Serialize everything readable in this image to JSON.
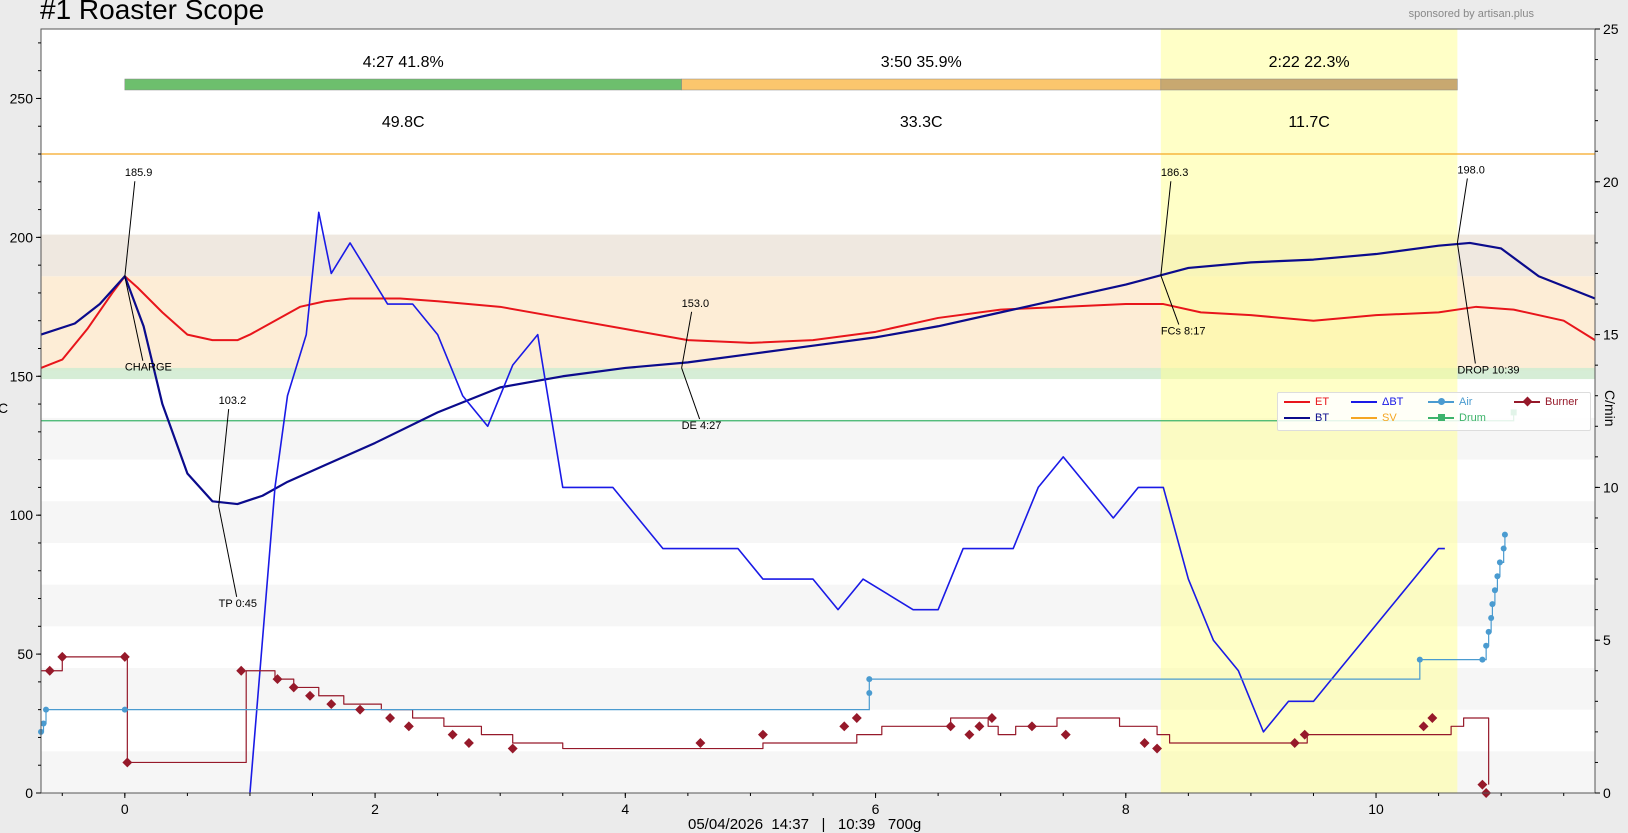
{
  "app": {
    "title": "#1 Roaster Scope",
    "sponsor": "sponsored by artisan.plus",
    "footer": "05/04/2026  14:37   |   10:39   700g",
    "ylabel_left": "C",
    "ylabel_right": "C/min"
  },
  "phases": [
    {
      "time": "4:27  41.8%",
      "delta": "49.8C",
      "color": "#6dbf6d"
    },
    {
      "time": "3:50  35.9%",
      "delta": "33.3C",
      "color": "#fbc66d"
    },
    {
      "time": "2:22  22.3%",
      "delta": "11.7C",
      "color": "#c8a870"
    }
  ],
  "events": [
    {
      "value": "185.9",
      "label": "CHARGE"
    },
    {
      "value": "103.2",
      "label": "TP 0:45"
    },
    {
      "value": "153.0",
      "label": "DE 4:27"
    },
    {
      "value": "186.3",
      "label": "FCs 8:17"
    },
    {
      "value": "198.0",
      "label": "DROP 10:39"
    }
  ],
  "legend": [
    {
      "name": "ET",
      "color": "#e8151b",
      "marker": "line"
    },
    {
      "name": "ΔBT",
      "color": "#1a1ae6",
      "marker": "line"
    },
    {
      "name": "Air",
      "color": "#4a9bd0",
      "marker": "circle"
    },
    {
      "name": "Burner",
      "color": "#96192a",
      "marker": "diamond"
    },
    {
      "name": "BT",
      "color": "#0b0b8c",
      "marker": "line"
    },
    {
      "name": "SV",
      "color": "#f5a623",
      "marker": "line"
    },
    {
      "name": "Drum",
      "color": "#3db36b",
      "marker": "square"
    }
  ],
  "chart_data": {
    "type": "line",
    "x_unit": "minutes",
    "xlim": [
      -0.67,
      11.75
    ],
    "ylim": [
      0,
      275
    ],
    "y2lim": [
      0,
      25
    ],
    "xticks": [
      0,
      2,
      4,
      6,
      8,
      10
    ],
    "yticks": [
      0,
      50,
      100,
      150,
      200,
      250
    ],
    "y2ticks": [
      0,
      5,
      10,
      15,
      20,
      25
    ],
    "bands": [
      {
        "from": 152,
        "to": 186,
        "color": "#fdebd2"
      },
      {
        "from": 186,
        "to": 201,
        "color": "#ede5dd"
      },
      {
        "from": 149,
        "to": 153,
        "color": "#d2ebd2"
      }
    ],
    "finish_phase": {
      "from": 8.28,
      "to": 10.65
    },
    "sv_level": 230,
    "drum_level": 134,
    "series": [
      {
        "name": "ET",
        "color": "#e8151b",
        "axis": "left",
        "x": [
          -0.67,
          -0.5,
          -0.3,
          -0.1,
          0,
          0.1,
          0.3,
          0.5,
          0.7,
          0.9,
          1.0,
          1.2,
          1.4,
          1.6,
          1.8,
          2.0,
          2.2,
          2.5,
          3.0,
          3.5,
          4.0,
          4.5,
          5.0,
          5.5,
          6.0,
          6.5,
          7.0,
          7.5,
          8.0,
          8.3,
          8.6,
          9.0,
          9.5,
          10.0,
          10.5,
          10.8,
          11.1,
          11.5,
          11.75
        ],
        "y": [
          153,
          156,
          167,
          180,
          186,
          182,
          173,
          165,
          163,
          163,
          165,
          170,
          175,
          177,
          178,
          178,
          178,
          177,
          175,
          171,
          167,
          163,
          162,
          163,
          166,
          171,
          174,
          175,
          176,
          176,
          173,
          172,
          170,
          172,
          173,
          175,
          174,
          170,
          163
        ]
      },
      {
        "name": "BT",
        "color": "#0b0b8c",
        "axis": "left",
        "x": [
          -0.67,
          -0.4,
          -0.2,
          0,
          0.15,
          0.3,
          0.5,
          0.7,
          0.9,
          1.1,
          1.3,
          1.6,
          2.0,
          2.5,
          3.0,
          3.5,
          4.0,
          4.5,
          5.0,
          5.5,
          6.0,
          6.5,
          7.0,
          7.5,
          8.0,
          8.5,
          9.0,
          9.5,
          10.0,
          10.5,
          10.75,
          11.0,
          11.3,
          11.75
        ],
        "y": [
          165,
          169,
          176,
          186,
          168,
          140,
          115,
          105,
          104,
          107,
          112,
          118,
          126,
          137,
          146,
          150,
          153,
          155,
          158,
          161,
          164,
          168,
          173,
          178,
          183,
          189,
          191,
          192,
          194,
          197,
          198,
          196,
          186,
          178
        ]
      },
      {
        "name": "ΔBT",
        "color": "#1a1ae6",
        "axis": "right",
        "x": [
          1.0,
          1.1,
          1.2,
          1.3,
          1.45,
          1.55,
          1.65,
          1.8,
          1.95,
          2.1,
          2.3,
          2.5,
          2.7,
          2.9,
          3.1,
          3.3,
          3.5,
          3.7,
          3.9,
          4.1,
          4.3,
          4.5,
          4.7,
          4.9,
          5.1,
          5.3,
          5.5,
          5.7,
          5.9,
          6.1,
          6.3,
          6.5,
          6.7,
          6.9,
          7.1,
          7.3,
          7.5,
          7.7,
          7.9,
          8.1,
          8.3,
          8.5,
          8.7,
          8.9,
          9.1,
          9.3,
          9.5,
          9.7,
          9.9,
          10.1,
          10.3,
          10.5,
          10.55
        ],
        "y": [
          0,
          5,
          10,
          13,
          15,
          19,
          17,
          18,
          17,
          16,
          16,
          15,
          13,
          12,
          14,
          15,
          10,
          10,
          10,
          9,
          8,
          8,
          8,
          8,
          7,
          7,
          7,
          6,
          7,
          6.5,
          6,
          6,
          8,
          8,
          8,
          10,
          11,
          10,
          9,
          10,
          10,
          7,
          5,
          4,
          2,
          3,
          3,
          4,
          5,
          6,
          7,
          8,
          8
        ]
      },
      {
        "name": "Burner",
        "color": "#96192a",
        "axis": "left",
        "step": true,
        "x": [
          -0.67,
          -0.5,
          -0.3,
          0,
          0.02,
          0.97,
          1.2,
          1.35,
          1.55,
          1.75,
          2.05,
          2.3,
          2.55,
          2.85,
          3.1,
          3.5,
          4.4,
          5.1,
          5.85,
          6.05,
          6.6,
          6.9,
          6.98,
          7.12,
          7.45,
          7.95,
          8.25,
          8.35,
          9.4,
          9.45,
          10.45,
          10.6,
          10.7,
          10.9
        ],
        "y": [
          44,
          49,
          49,
          49,
          11,
          44,
          41,
          38,
          35,
          32,
          30,
          27,
          24,
          21,
          18,
          16,
          16,
          18,
          21,
          24,
          27,
          24,
          21,
          24,
          27,
          24,
          21,
          18,
          18,
          21,
          21,
          24,
          27,
          3
        ]
      }
    ],
    "burner_markers": [
      [
        -0.6,
        44
      ],
      [
        -0.5,
        49
      ],
      [
        0,
        49
      ],
      [
        0.02,
        11
      ],
      [
        0.93,
        44
      ],
      [
        1.22,
        41
      ],
      [
        1.35,
        38
      ],
      [
        1.48,
        35
      ],
      [
        1.65,
        32
      ],
      [
        1.88,
        30
      ],
      [
        2.12,
        27
      ],
      [
        2.27,
        24
      ],
      [
        2.62,
        21
      ],
      [
        2.75,
        18
      ],
      [
        3.1,
        16
      ],
      [
        4.6,
        18
      ],
      [
        5.1,
        21
      ],
      [
        5.75,
        24
      ],
      [
        5.85,
        27
      ],
      [
        6.6,
        24
      ],
      [
        6.75,
        21
      ],
      [
        6.83,
        24
      ],
      [
        6.93,
        27
      ],
      [
        7.25,
        24
      ],
      [
        7.52,
        21
      ],
      [
        8.15,
        18
      ],
      [
        8.25,
        16
      ],
      [
        9.35,
        18
      ],
      [
        9.43,
        21
      ],
      [
        10.38,
        24
      ],
      [
        10.45,
        27
      ],
      [
        10.85,
        3
      ],
      [
        10.88,
        0
      ]
    ],
    "air_points": [
      [
        -0.67,
        22
      ],
      [
        -0.65,
        25
      ],
      [
        -0.63,
        30
      ],
      [
        0,
        30
      ],
      [
        5.95,
        36
      ],
      [
        5.95,
        41
      ],
      [
        10.35,
        48
      ],
      [
        10.85,
        48
      ],
      [
        10.88,
        53
      ],
      [
        10.9,
        58
      ],
      [
        10.92,
        63
      ],
      [
        10.93,
        68
      ],
      [
        10.95,
        73
      ],
      [
        10.97,
        78
      ],
      [
        10.99,
        83
      ],
      [
        11.02,
        88
      ],
      [
        11.03,
        93
      ]
    ],
    "drum_point": [
      11.1,
      137
    ]
  }
}
